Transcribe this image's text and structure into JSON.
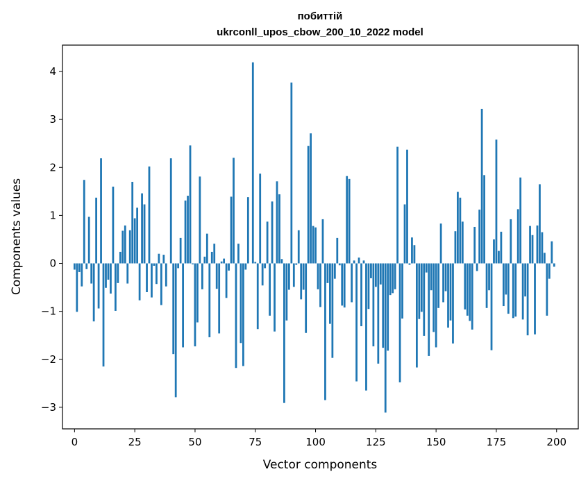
{
  "chart_data": {
    "type": "bar",
    "title_line1": "побиттій",
    "title_line2": "ukrconll_upos_cbow_200_10_2022 model",
    "xlabel": "Vector components",
    "ylabel": "Components values",
    "xlim": [
      -5,
      209
    ],
    "ylim": [
      -3.45,
      4.55
    ],
    "xticks": [
      0,
      25,
      50,
      75,
      100,
      125,
      150,
      175,
      200
    ],
    "yticks": [
      -3,
      -2,
      -1,
      0,
      1,
      2,
      3,
      4
    ],
    "bar_color": "#1f77b4",
    "grid": false,
    "legend": "none",
    "values": [
      -0.13,
      -1.01,
      -0.18,
      -0.48,
      1.74,
      -0.12,
      0.97,
      -0.42,
      -1.21,
      1.37,
      -0.94,
      2.19,
      -2.15,
      -0.51,
      -0.34,
      -0.63,
      1.6,
      -0.99,
      -0.41,
      0.24,
      0.68,
      0.79,
      -0.42,
      0.69,
      1.7,
      0.94,
      1.16,
      -0.77,
      1.46,
      1.23,
      -0.6,
      2.02,
      -0.71,
      -0.05,
      -0.43,
      0.2,
      -0.87,
      0.18,
      -0.48,
      0.0,
      2.19,
      -1.89,
      -2.79,
      -0.1,
      0.53,
      -1.75,
      1.31,
      1.41,
      2.46,
      -0.02,
      -1.73,
      -1.23,
      1.81,
      -0.54,
      0.14,
      0.62,
      -1.54,
      0.24,
      0.41,
      -0.53,
      -1.46,
      0.04,
      0.1,
      -0.72,
      -0.15,
      1.39,
      2.2,
      -2.18,
      0.41,
      -1.66,
      -2.14,
      -0.13,
      1.38,
      0.0,
      4.19,
      0.03,
      -1.37,
      1.87,
      -0.46,
      -0.1,
      0.87,
      -1.09,
      1.29,
      -1.42,
      1.71,
      1.44,
      0.09,
      -2.91,
      -1.19,
      -0.55,
      3.77,
      -0.49,
      -0.03,
      0.69,
      -0.75,
      -0.55,
      -1.45,
      2.45,
      2.71,
      0.78,
      0.75,
      -0.54,
      -0.91,
      0.92,
      -2.85,
      -0.41,
      -1.26,
      -1.97,
      -0.32,
      0.53,
      -0.04,
      -0.88,
      -0.92,
      1.82,
      1.76,
      -0.81,
      0.06,
      -2.46,
      0.12,
      -1.31,
      0.06,
      -2.65,
      -0.95,
      -0.31,
      -1.73,
      -0.49,
      -2.09,
      -0.44,
      -1.76,
      -3.11,
      -1.82,
      -0.66,
      -0.62,
      -0.54,
      2.43,
      -2.48,
      -1.15,
      1.23,
      2.37,
      -0.03,
      0.54,
      0.38,
      -2.17,
      -1.16,
      -1.01,
      -1.51,
      -0.19,
      -1.93,
      -0.56,
      -1.43,
      -1.75,
      -0.93,
      0.83,
      -0.81,
      -0.58,
      -1.34,
      -1.19,
      -1.67,
      0.67,
      1.49,
      1.37,
      0.87,
      -0.96,
      -1.09,
      -1.2,
      -1.38,
      0.76,
      -0.16,
      1.12,
      3.22,
      1.84,
      -0.93,
      -0.56,
      -1.81,
      0.5,
      2.58,
      0.26,
      0.66,
      -0.89,
      -0.65,
      -1.05,
      0.92,
      -1.14,
      -1.11,
      1.13,
      1.79,
      -1.17,
      -0.69,
      -1.5,
      0.78,
      0.59,
      -1.48,
      0.79,
      1.65,
      0.65,
      0.22,
      -1.09,
      -0.32,
      0.46,
      -0.07
    ]
  }
}
